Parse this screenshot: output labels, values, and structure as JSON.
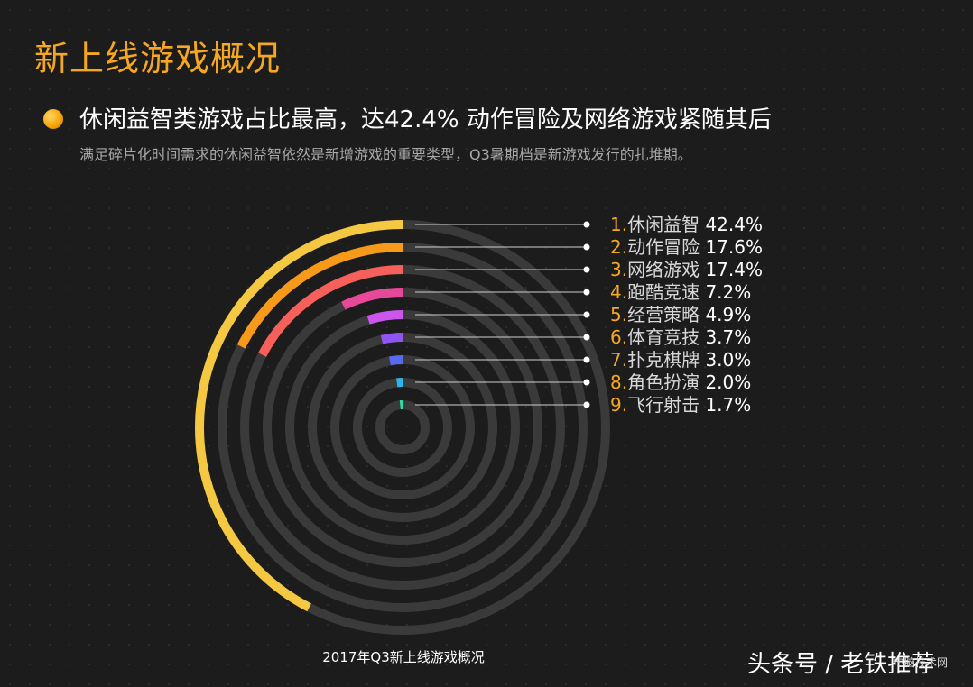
{
  "title": "新上线游戏概况",
  "subtitle": "休闲益智类游戏占比最高，达42.4%   动作冒险及网络游戏紧随其后",
  "description": "满足碎片化时间需求的休闲益智依然是新增游戏的重要类型，Q3暑期档是新游戏发行的扎堆期。",
  "caption": "2017年Q3新上线游戏概况",
  "watermark": "头条号 / 老铁推荐",
  "watermark_small": "电脑技术网",
  "colors": {
    "background": "#1c1c1c",
    "title": "#f5a623",
    "track": "#3a3a3a",
    "label_number": "#f5a623",
    "label_name": "#d8d8d8",
    "label_value": "#ffffff"
  },
  "chart_data": {
    "type": "radial-bar",
    "unit": "%",
    "max": 100,
    "categories": [
      "休闲益智",
      "动作冒险",
      "网络游戏",
      "跑酷竞速",
      "经营策略",
      "体育竞技",
      "扑克棋牌",
      "角色扮演",
      "飞行射击"
    ],
    "values": [
      42.4,
      17.6,
      17.4,
      7.2,
      4.9,
      3.7,
      3.0,
      2.0,
      1.7
    ],
    "labels": [
      "1.",
      "2.",
      "3.",
      "4.",
      "5.",
      "6.",
      "7.",
      "8.",
      "9."
    ],
    "value_labels": [
      "42.4%",
      "17.6%",
      "17.4%",
      "7.2%",
      "4.9%",
      "3.7%",
      "3.0%",
      "2.0%",
      "1.7%"
    ],
    "colors": [
      "#f5c842",
      "#f79a1a",
      "#f5605a",
      "#e8489a",
      "#cc55ee",
      "#8e55f0",
      "#5a6af0",
      "#2eb5e8",
      "#2ee0a0"
    ]
  }
}
